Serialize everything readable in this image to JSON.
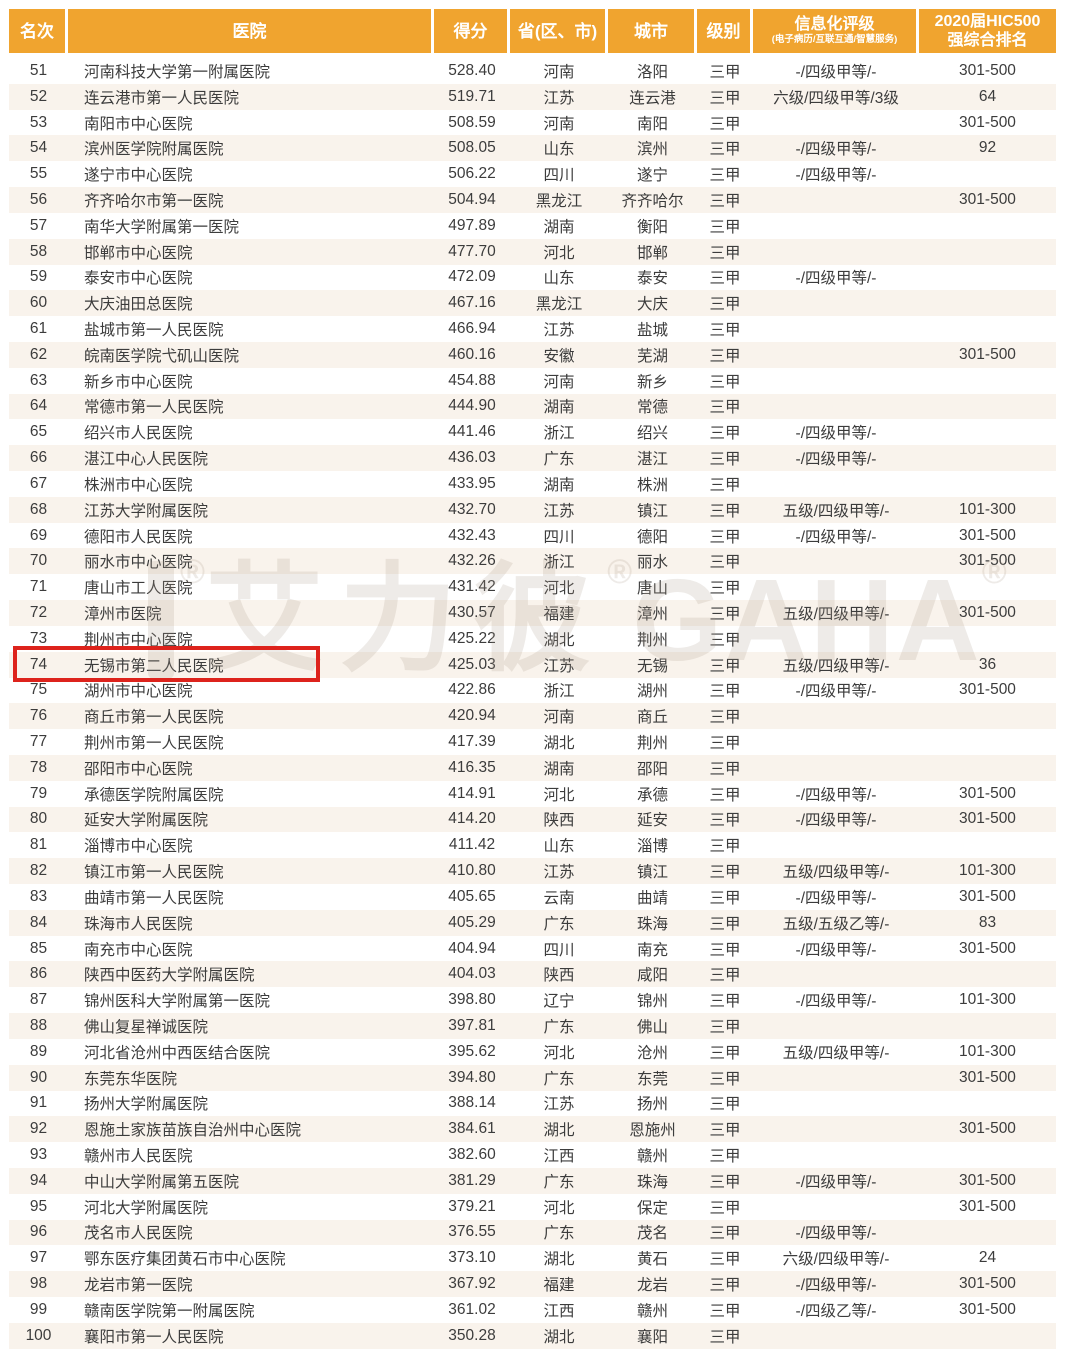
{
  "header": {
    "columns": [
      {
        "label": "名次"
      },
      {
        "label": "医院"
      },
      {
        "label": "得分"
      },
      {
        "label": "省(区、市)"
      },
      {
        "label": "城市"
      },
      {
        "label": "级别"
      },
      {
        "label": "信息化评级",
        "sub": "(电子病历/互联互通/智慧服务)"
      },
      {
        "line1": "2020届HIC500",
        "line2": "强综合排名"
      }
    ]
  },
  "watermark": {
    "brand_cn": "艾力彼",
    "brand_en": "GAHA",
    "reg": "®"
  },
  "highlight": {
    "description": "red box around rank 74 row",
    "row_rank": "74"
  },
  "colors": {
    "header_bg": "#F0A42F",
    "header_text": "#FFFFFF",
    "stripe_bg": "#F9F3EC",
    "body_text": "#3C3C3C",
    "highlight_border": "#DD231C",
    "watermark": "#ECE7DF"
  },
  "rows": [
    [
      "51",
      "河南科技大学第一附属医院",
      "528.40",
      "河南",
      "洛阳",
      "三甲",
      "-/四级甲等/-",
      "301-500"
    ],
    [
      "52",
      "连云港市第一人民医院",
      "519.71",
      "江苏",
      "连云港",
      "三甲",
      "六级/四级甲等/3级",
      "64"
    ],
    [
      "53",
      "南阳市中心医院",
      "508.59",
      "河南",
      "南阳",
      "三甲",
      "",
      "301-500"
    ],
    [
      "54",
      "滨州医学院附属医院",
      "508.05",
      "山东",
      "滨州",
      "三甲",
      "-/四级甲等/-",
      "92"
    ],
    [
      "55",
      "遂宁市中心医院",
      "506.22",
      "四川",
      "遂宁",
      "三甲",
      "-/四级甲等/-",
      ""
    ],
    [
      "56",
      "齐齐哈尔市第一医院",
      "504.94",
      "黑龙江",
      "齐齐哈尔",
      "三甲",
      "",
      "301-500"
    ],
    [
      "57",
      "南华大学附属第一医院",
      "497.89",
      "湖南",
      "衡阳",
      "三甲",
      "",
      ""
    ],
    [
      "58",
      "邯郸市中心医院",
      "477.70",
      "河北",
      "邯郸",
      "三甲",
      "",
      ""
    ],
    [
      "59",
      "泰安市中心医院",
      "472.09",
      "山东",
      "泰安",
      "三甲",
      "-/四级甲等/-",
      ""
    ],
    [
      "60",
      "大庆油田总医院",
      "467.16",
      "黑龙江",
      "大庆",
      "三甲",
      "",
      ""
    ],
    [
      "61",
      "盐城市第一人民医院",
      "466.94",
      "江苏",
      "盐城",
      "三甲",
      "",
      ""
    ],
    [
      "62",
      "皖南医学院弋矶山医院",
      "460.16",
      "安徽",
      "芜湖",
      "三甲",
      "",
      "301-500"
    ],
    [
      "63",
      "新乡市中心医院",
      "454.88",
      "河南",
      "新乡",
      "三甲",
      "",
      ""
    ],
    [
      "64",
      "常德市第一人民医院",
      "444.90",
      "湖南",
      "常德",
      "三甲",
      "",
      ""
    ],
    [
      "65",
      "绍兴市人民医院",
      "441.46",
      "浙江",
      "绍兴",
      "三甲",
      "-/四级甲等/-",
      ""
    ],
    [
      "66",
      "湛江中心人民医院",
      "436.03",
      "广东",
      "湛江",
      "三甲",
      "-/四级甲等/-",
      ""
    ],
    [
      "67",
      "株洲市中心医院",
      "433.95",
      "湖南",
      "株洲",
      "三甲",
      "",
      ""
    ],
    [
      "68",
      "江苏大学附属医院",
      "432.70",
      "江苏",
      "镇江",
      "三甲",
      "五级/四级甲等/-",
      "101-300"
    ],
    [
      "69",
      "德阳市人民医院",
      "432.43",
      "四川",
      "德阳",
      "三甲",
      "-/四级甲等/-",
      "301-500"
    ],
    [
      "70",
      "丽水市中心医院",
      "432.26",
      "浙江",
      "丽水",
      "三甲",
      "",
      "301-500"
    ],
    [
      "71",
      "唐山市工人医院",
      "431.42",
      "河北",
      "唐山",
      "三甲",
      "",
      ""
    ],
    [
      "72",
      "漳州市医院",
      "430.57",
      "福建",
      "漳州",
      "三甲",
      "五级/四级甲等/-",
      "301-500"
    ],
    [
      "73",
      "荆州市中心医院",
      "425.22",
      "湖北",
      "荆州",
      "三甲",
      "",
      ""
    ],
    [
      "74",
      "无锡市第二人民医院",
      "425.03",
      "江苏",
      "无锡",
      "三甲",
      "五级/四级甲等/-",
      "36"
    ],
    [
      "75",
      "湖州市中心医院",
      "422.86",
      "浙江",
      "湖州",
      "三甲",
      "-/四级甲等/-",
      "301-500"
    ],
    [
      "76",
      "商丘市第一人民医院",
      "420.94",
      "河南",
      "商丘",
      "三甲",
      "",
      ""
    ],
    [
      "77",
      "荆州市第一人民医院",
      "417.39",
      "湖北",
      "荆州",
      "三甲",
      "",
      ""
    ],
    [
      "78",
      "邵阳市中心医院",
      "416.35",
      "湖南",
      "邵阳",
      "三甲",
      "",
      ""
    ],
    [
      "79",
      "承德医学院附属医院",
      "414.91",
      "河北",
      "承德",
      "三甲",
      "-/四级甲等/-",
      "301-500"
    ],
    [
      "80",
      "延安大学附属医院",
      "414.20",
      "陕西",
      "延安",
      "三甲",
      "-/四级甲等/-",
      "301-500"
    ],
    [
      "81",
      "淄博市中心医院",
      "411.42",
      "山东",
      "淄博",
      "三甲",
      "",
      ""
    ],
    [
      "82",
      "镇江市第一人民医院",
      "410.80",
      "江苏",
      "镇江",
      "三甲",
      "五级/四级甲等/-",
      "101-300"
    ],
    [
      "83",
      "曲靖市第一人民医院",
      "405.65",
      "云南",
      "曲靖",
      "三甲",
      "-/四级甲等/-",
      "301-500"
    ],
    [
      "84",
      "珠海市人民医院",
      "405.29",
      "广东",
      "珠海",
      "三甲",
      "五级/五级乙等/-",
      "83"
    ],
    [
      "85",
      "南充市中心医院",
      "404.94",
      "四川",
      "南充",
      "三甲",
      "-/四级甲等/-",
      "301-500"
    ],
    [
      "86",
      "陕西中医药大学附属医院",
      "404.03",
      "陕西",
      "咸阳",
      "三甲",
      "",
      ""
    ],
    [
      "87",
      "锦州医科大学附属第一医院",
      "398.80",
      "辽宁",
      "锦州",
      "三甲",
      "-/四级甲等/-",
      "101-300"
    ],
    [
      "88",
      "佛山复星禅诚医院",
      "397.81",
      "广东",
      "佛山",
      "三甲",
      "",
      ""
    ],
    [
      "89",
      "河北省沧州中西医结合医院",
      "395.62",
      "河北",
      "沧州",
      "三甲",
      "五级/四级甲等/-",
      "101-300"
    ],
    [
      "90",
      "东莞东华医院",
      "394.80",
      "广东",
      "东莞",
      "三甲",
      "",
      "301-500"
    ],
    [
      "91",
      "扬州大学附属医院",
      "388.14",
      "江苏",
      "扬州",
      "三甲",
      "",
      ""
    ],
    [
      "92",
      "恩施土家族苗族自治州中心医院",
      "384.61",
      "湖北",
      "恩施州",
      "三甲",
      "",
      "301-500"
    ],
    [
      "93",
      "赣州市人民医院",
      "382.60",
      "江西",
      "赣州",
      "三甲",
      "",
      ""
    ],
    [
      "94",
      "中山大学附属第五医院",
      "381.29",
      "广东",
      "珠海",
      "三甲",
      "-/四级甲等/-",
      "301-500"
    ],
    [
      "95",
      "河北大学附属医院",
      "379.21",
      "河北",
      "保定",
      "三甲",
      "",
      "301-500"
    ],
    [
      "96",
      "茂名市人民医院",
      "376.55",
      "广东",
      "茂名",
      "三甲",
      "-/四级甲等/-",
      ""
    ],
    [
      "97",
      "鄂东医疗集团黄石市中心医院",
      "373.10",
      "湖北",
      "黄石",
      "三甲",
      "六级/四级甲等/-",
      "24"
    ],
    [
      "98",
      "龙岩市第一医院",
      "367.92",
      "福建",
      "龙岩",
      "三甲",
      "-/四级甲等/-",
      "301-500"
    ],
    [
      "99",
      "赣南医学院第一附属医院",
      "361.02",
      "江西",
      "赣州",
      "三甲",
      "-/四级乙等/-",
      "301-500"
    ],
    [
      "100",
      "襄阳市第一人民医院",
      "350.28",
      "湖北",
      "襄阳",
      "三甲",
      "",
      ""
    ]
  ]
}
